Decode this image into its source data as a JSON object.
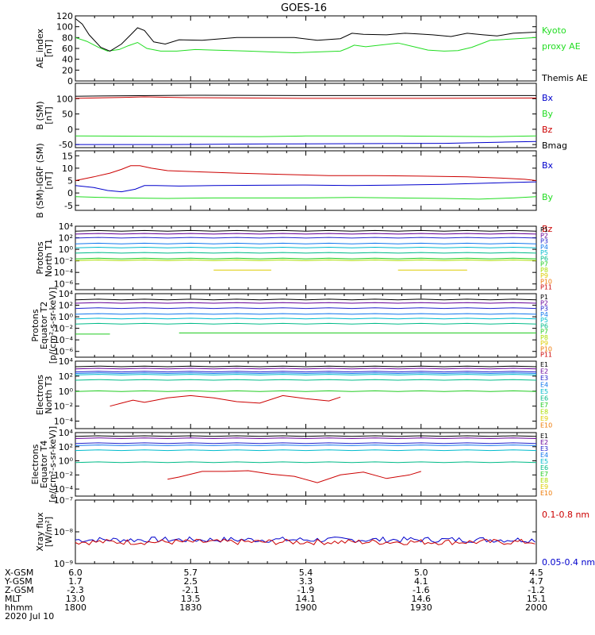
{
  "title": "GOES-16",
  "colors": {
    "black": "#000000",
    "green": "#22dd22",
    "blue": "#0000cc",
    "red": "#cc0000",
    "purple": "#660099",
    "p_colors": [
      "#000000",
      "#660099",
      "#2222cc",
      "#1177ee",
      "#00bbcc",
      "#00bb88",
      "#22cc22",
      "#aadd00",
      "#ddcc00",
      "#ee7700",
      "#cc0000"
    ]
  },
  "chart_data": [
    {
      "type": "line",
      "ylabel": [
        "AE_index",
        "[nT]"
      ],
      "ylim": [
        0,
        120
      ],
      "yticks": [
        0,
        20,
        40,
        60,
        80,
        100,
        120
      ],
      "ytick_labels": [
        "0",
        "20",
        "40",
        "60",
        "80",
        "100",
        "120"
      ],
      "legend": [
        {
          "text": "Kyoto",
          "color": "#22dd22",
          "row": 0
        },
        {
          "text": "proxy AE",
          "color": "#22dd22",
          "row": 1
        },
        {
          "text": "Themis AE",
          "color": "#000000",
          "row": 3
        }
      ],
      "series": [
        {
          "name": "Kyoto",
          "color": "#22dd22",
          "x": [
            0,
            5,
            10,
            14,
            19,
            23,
            27,
            31,
            37,
            44,
            52,
            60,
            75,
            95,
            115,
            118,
            121,
            126,
            140,
            148,
            153,
            160,
            166,
            172,
            180,
            200
          ],
          "y": [
            80,
            73,
            62,
            55,
            58,
            65,
            71,
            60,
            55,
            55,
            58,
            57,
            55,
            52,
            55,
            60,
            66,
            63,
            70,
            62,
            57,
            55,
            56,
            62,
            75,
            80
          ]
        },
        {
          "name": "Themis AE",
          "color": "#000000",
          "x": [
            0,
            3,
            6,
            11,
            15,
            20,
            24,
            27,
            30,
            34,
            39,
            45,
            55,
            70,
            85,
            95,
            105,
            115,
            120,
            125,
            135,
            143,
            148,
            155,
            163,
            170,
            177,
            183,
            190,
            200
          ],
          "y": [
            115,
            105,
            85,
            62,
            55,
            68,
            85,
            98,
            93,
            72,
            68,
            76,
            75,
            80,
            80,
            80,
            75,
            78,
            88,
            86,
            85,
            88,
            87,
            85,
            82,
            88,
            85,
            83,
            88,
            90
          ]
        }
      ]
    },
    {
      "type": "line",
      "ylabel": [
        "B (SM)",
        "[nT]"
      ],
      "ylim": [
        -60,
        150
      ],
      "yticks": [
        -50,
        0,
        50,
        100
      ],
      "ytick_labels": [
        "-50",
        "0",
        "50",
        "100"
      ],
      "legend": [
        {
          "text": "Bx",
          "color": "#0000cc",
          "row": 0
        },
        {
          "text": "By",
          "color": "#22dd22",
          "row": 1
        },
        {
          "text": "Bz",
          "color": "#cc0000",
          "row": 2
        },
        {
          "text": "Bmag",
          "color": "#000000",
          "row": 3
        }
      ],
      "series": [
        {
          "name": "Bmag",
          "color": "#000000",
          "x": [
            0,
            50,
            100,
            150,
            200
          ],
          "y": [
            108,
            111,
            110,
            110,
            110
          ]
        },
        {
          "name": "Bz",
          "color": "#cc0000",
          "x": [
            0,
            20,
            30,
            50,
            100,
            150,
            200
          ],
          "y": [
            101,
            104,
            106,
            103,
            101,
            101,
            102
          ]
        },
        {
          "name": "By",
          "color": "#22dd22",
          "x": [
            0,
            40,
            80,
            100,
            140,
            180,
            200
          ],
          "y": [
            -22,
            -23,
            -24,
            -22,
            -22,
            -24,
            -22
          ]
        },
        {
          "name": "Bx",
          "color": "#0000cc",
          "x": [
            0,
            40,
            80,
            120,
            160,
            185,
            200
          ],
          "y": [
            -50,
            -50,
            -48,
            -47,
            -46,
            -42,
            -40
          ]
        }
      ]
    },
    {
      "type": "line",
      "ylabel": [
        "B (SM)-IGRF (SM)",
        "[nT]"
      ],
      "ylim": [
        -7,
        17
      ],
      "yticks": [
        -5,
        0,
        5,
        10,
        15
      ],
      "ytick_labels": [
        "-5",
        "0",
        "5",
        "10",
        "15"
      ],
      "legend": [
        {
          "text": "Bx",
          "color": "#0000cc",
          "row": 0
        },
        {
          "text": "By",
          "color": "#22dd22",
          "row": 2
        },
        {
          "text": "Bz",
          "color": "#cc0000",
          "row": 4
        }
      ],
      "series": [
        {
          "name": "Bz",
          "color": "#cc0000",
          "x": [
            0,
            8,
            15,
            20,
            24,
            28,
            33,
            40,
            55,
            70,
            90,
            110,
            130,
            150,
            170,
            185,
            195,
            200
          ],
          "y": [
            5,
            6.5,
            8,
            9.5,
            11,
            11,
            10,
            9,
            8.5,
            8,
            7.5,
            7,
            7,
            6.8,
            6.5,
            6,
            5.5,
            5
          ]
        },
        {
          "name": "Bx",
          "color": "#0000cc",
          "x": [
            0,
            8,
            14,
            20,
            26,
            30,
            35,
            45,
            60,
            80,
            100,
            120,
            140,
            160,
            180,
            200
          ],
          "y": [
            3,
            2.2,
            1,
            0.5,
            1.5,
            3,
            3,
            2.8,
            3,
            3.1,
            3.2,
            3,
            3.2,
            3.5,
            4,
            4.5
          ]
        },
        {
          "name": "By",
          "color": "#22dd22",
          "x": [
            0,
            20,
            40,
            60,
            80,
            100,
            120,
            140,
            160,
            175,
            190,
            200
          ],
          "y": [
            -1.5,
            -2,
            -2.2,
            -2,
            -2,
            -2,
            -1.8,
            -2,
            -2.2,
            -2.5,
            -2,
            -1.5
          ]
        }
      ]
    },
    {
      "type": "line",
      "ylabel": [
        "Protons",
        "North T1"
      ],
      "ylog": true,
      "ylim": [
        -7,
        4
      ],
      "yticks": [
        -6,
        -4,
        -2,
        0,
        2,
        4
      ],
      "ytick_labels": [
        "10⁻⁶",
        "10⁻⁴",
        "10⁻²",
        "10⁰",
        "10²",
        "10⁴"
      ],
      "legend_small": [
        "P1",
        "P2",
        "P3",
        "P4",
        "P5",
        "P6",
        "P7",
        "P8",
        "P9",
        "P10",
        "P11"
      ],
      "levels": [
        {
          "name": "P1",
          "y": 3.2
        },
        {
          "name": "P2",
          "y": 2.7
        },
        {
          "name": "P3",
          "y": 2.0
        },
        {
          "name": "P4",
          "y": 1.0
        },
        {
          "name": "P5",
          "y": 0.3
        },
        {
          "name": "P6",
          "y": -0.6
        },
        {
          "name": "P7",
          "y": -1.6
        },
        {
          "name": "P8",
          "y": -1.9
        }
      ],
      "segments": [
        {
          "name": "P9",
          "x": [
            60,
            85
          ],
          "y": -3.6
        },
        {
          "name": "P9",
          "x": [
            140,
            170
          ],
          "y": -3.6
        }
      ]
    },
    {
      "type": "line",
      "ylabel": [
        "Protons",
        "Equator T2",
        "[p/(cm²-s-sr-keV)]"
      ],
      "ylog": true,
      "ylim": [
        -7,
        4
      ],
      "yticks": [
        -6,
        -4,
        -2,
        0,
        2,
        4
      ],
      "ytick_labels": [
        "10⁻⁶",
        "10⁻⁴",
        "10⁻²",
        "10⁰",
        "10²",
        "10⁴"
      ],
      "legend_small": [
        "P1",
        "P2",
        "P3",
        "P4",
        "P5",
        "P6",
        "P7",
        "P8",
        "P9",
        "P10",
        "P11"
      ],
      "levels": [
        {
          "name": "P1",
          "y": 3.0
        },
        {
          "name": "P2",
          "y": 2.4
        },
        {
          "name": "P3",
          "y": 1.5
        },
        {
          "name": "P4",
          "y": 0.5
        },
        {
          "name": "P5",
          "y": -0.3
        },
        {
          "name": "P6",
          "y": -1.2
        }
      ],
      "segments": [
        {
          "name": "P7",
          "x": [
            0,
            15
          ],
          "y": -3.0
        },
        {
          "name": "P7",
          "x": [
            45,
            200
          ],
          "y": -2.8
        }
      ]
    },
    {
      "type": "line",
      "ylabel": [
        "Electrons",
        "North T3"
      ],
      "ylog": true,
      "ylim": [
        -5,
        4
      ],
      "yticks": [
        -4,
        -2,
        0,
        2,
        4
      ],
      "ytick_labels": [
        "10⁻⁴",
        "10⁻²",
        "10⁰",
        "10²",
        "10⁴"
      ],
      "legend_small": [
        "E1",
        "E2",
        "E3",
        "E4",
        "E5",
        "E6",
        "E7",
        "E8",
        "E9",
        "E10"
      ],
      "levels": [
        {
          "name": "E1",
          "y": 3.3
        },
        {
          "name": "E2",
          "y": 3.0
        },
        {
          "name": "E3",
          "y": 2.6
        },
        {
          "name": "E4",
          "y": 2.4
        },
        {
          "name": "E5",
          "y": 2.2
        },
        {
          "name": "E6",
          "y": 1.5
        },
        {
          "name": "E7",
          "y": 0.0
        }
      ],
      "red_x": [
        15,
        20,
        25,
        30,
        35,
        40,
        50,
        60,
        70,
        80,
        90,
        100,
        110,
        115
      ],
      "red_y": [
        -2.0,
        -1.6,
        -1.2,
        -1.5,
        -1.2,
        -0.9,
        -0.6,
        -0.9,
        -1.4,
        -1.6,
        -0.6,
        -1.0,
        -1.3,
        -0.8
      ]
    },
    {
      "type": "line",
      "ylabel": [
        "Electrons",
        "Equator T4",
        "[e/(cm²-s-sr-keV)]"
      ],
      "ylog": true,
      "ylim": [
        -5,
        4
      ],
      "yticks": [
        -4,
        -2,
        0,
        2,
        4
      ],
      "ytick_labels": [
        "10⁻⁴",
        "10⁻²",
        "10⁰",
        "10²",
        "10⁴"
      ],
      "legend_small": [
        "E1",
        "E2",
        "E3",
        "E4",
        "E5",
        "E6",
        "E7",
        "E8",
        "E9",
        "E10"
      ],
      "levels": [
        {
          "name": "E1",
          "y": 3.5
        },
        {
          "name": "E2",
          "y": 3.2
        },
        {
          "name": "E3",
          "y": 2.5
        },
        {
          "name": "E4",
          "y": 2.2
        },
        {
          "name": "E5",
          "y": 1.5
        },
        {
          "name": "E6",
          "y": -0.2
        }
      ],
      "red_x": [
        40,
        45,
        55,
        65,
        75,
        85,
        95,
        105,
        115,
        125,
        135,
        145,
        150
      ],
      "red_y": [
        -2.6,
        -2.3,
        -1.5,
        -1.5,
        -1.4,
        -1.9,
        -2.2,
        -3.1,
        -2.0,
        -1.6,
        -2.5,
        -2.0,
        -1.5
      ]
    },
    {
      "type": "line",
      "ylabel": [
        "Xray flux",
        "[W/m²]"
      ],
      "ylog": true,
      "ylim": [
        -9,
        -7
      ],
      "yticks": [
        -9,
        -8,
        -7
      ],
      "ytick_labels": [
        "10⁻⁹",
        "10⁻⁸",
        "10⁻⁷"
      ],
      "legend": [
        {
          "text": "0.1-0.8 nm",
          "color": "#cc0000",
          "row": 0
        },
        {
          "text": "0.05-0.4 nm",
          "color": "#0000cc",
          "row": 3
        }
      ],
      "blue_base": -8.25,
      "red_base": -8.32
    }
  ],
  "xaxis": {
    "rows": [
      {
        "label": "X-GSM",
        "values": [
          "6.0",
          "5.7",
          "5.4",
          "5.0",
          "4.5"
        ]
      },
      {
        "label": "Y-GSM",
        "values": [
          "1.7",
          "2.5",
          "3.3",
          "4.1",
          "4.7"
        ]
      },
      {
        "label": "Z-GSM",
        "values": [
          "-2.3",
          "-2.1",
          "-1.9",
          "-1.6",
          "-1.2"
        ]
      },
      {
        "label": "MLT",
        "values": [
          "13.0",
          "13.5",
          "14.1",
          "14.6",
          "15.1"
        ]
      },
      {
        "label": "hhmm",
        "values": [
          "1800",
          "1830",
          "1900",
          "1930",
          "2000"
        ]
      }
    ],
    "date": "2020 Jul 10"
  }
}
